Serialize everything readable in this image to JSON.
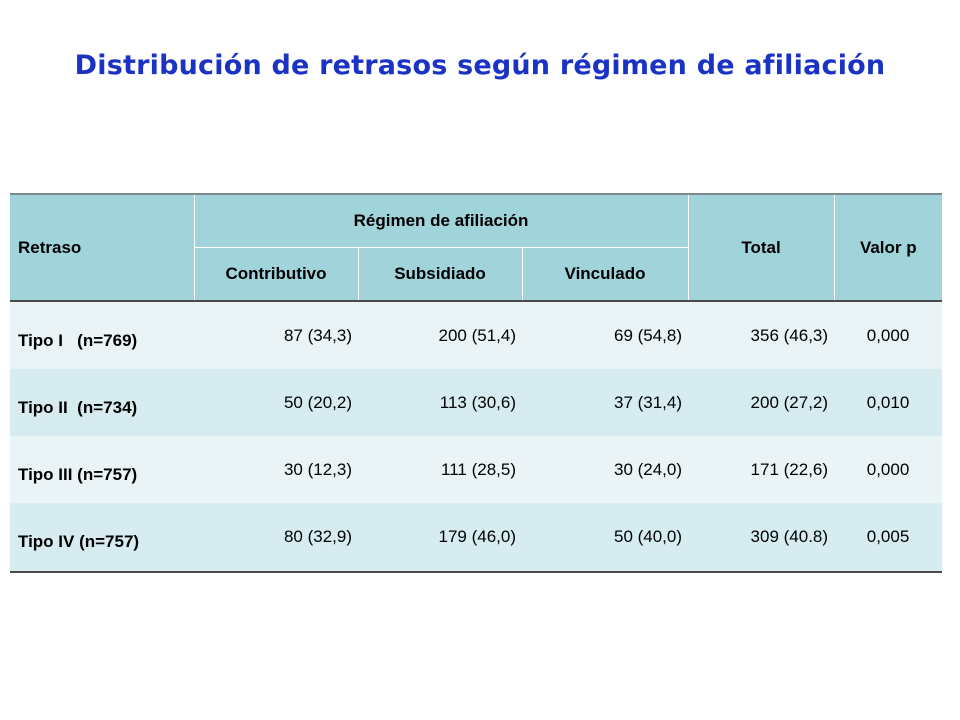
{
  "slide": {
    "title": "Distribución de retrasos según régimen de afiliación"
  },
  "table": {
    "headers": {
      "retraso": "Retraso",
      "regimen": "Régimen de afiliación",
      "total": "Total",
      "valor_p": "Valor p",
      "contributivo": "Contributivo",
      "subsidiado": "Subsidiado",
      "vinculado": "Vinculado"
    },
    "rows": [
      {
        "retraso": "Tipo I   (n=769)",
        "contributivo": "87 (34,3)",
        "subsidiado": "200 (51,4)",
        "vinculado": "69 (54,8)",
        "total": "356 (46,3)",
        "valor_p": "0,000"
      },
      {
        "retraso": "Tipo II  (n=734)",
        "contributivo": "50 (20,2)",
        "subsidiado": "113 (30,6)",
        "vinculado": "37 (31,4)",
        "total": "200 (27,2)",
        "valor_p": "0,010"
      },
      {
        "retraso": "Tipo III (n=757)",
        "contributivo": "30 (12,3)",
        "subsidiado": "111 (28,5)",
        "vinculado": "30 (24,0)",
        "total": "171 (22,6)",
        "valor_p": "0,000"
      },
      {
        "retraso": "Tipo IV (n=757)",
        "contributivo": "80 (32,9)",
        "subsidiado": "179 (46,0)",
        "vinculado": "50 (40,0)",
        "total": "309 (40.8)",
        "valor_p": "0,005"
      }
    ]
  },
  "colors": {
    "title": "#1a33c4",
    "header_bg": "#a1d4da",
    "row_light": "#eaf4f7",
    "row_dark": "#d6ecf1"
  }
}
